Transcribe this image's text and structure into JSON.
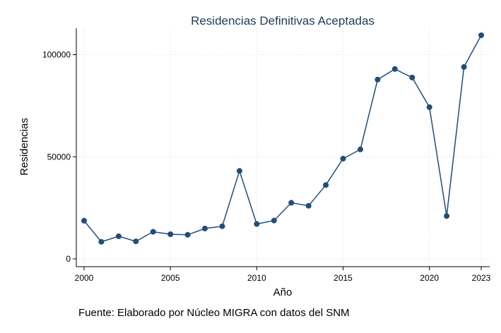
{
  "chart_data": {
    "type": "line",
    "title": "Residencias Definitivas Aceptadas",
    "xlabel": "Año",
    "ylabel": "Residencias",
    "note": "Fuente: Elaborado por Núcleo MIGRA con datos del SNM",
    "x": [
      2000,
      2001,
      2002,
      2003,
      2004,
      2005,
      2006,
      2007,
      2008,
      2009,
      2010,
      2011,
      2012,
      2013,
      2014,
      2015,
      2016,
      2017,
      2018,
      2019,
      2020,
      2021,
      2022,
      2023
    ],
    "series": [
      {
        "values": [
          18700,
          8400,
          11100,
          8600,
          13300,
          12100,
          11800,
          14900,
          16000,
          43100,
          17100,
          18800,
          27500,
          26000,
          36200,
          49100,
          53600,
          87800,
          93000,
          88800,
          74300,
          21000,
          94000,
          109500
        ]
      }
    ],
    "xticks": [
      2000,
      2005,
      2010,
      2015,
      2020,
      2023
    ],
    "xtick_labels": [
      "2000",
      "2005",
      "2010",
      "2015",
      "2020",
      "2023"
    ],
    "yticks": [
      0,
      50000,
      100000
    ],
    "ytick_labels": [
      "0",
      "50000",
      "100000"
    ],
    "xlim": [
      2000,
      2023
    ],
    "ylim": [
      0,
      109500
    ],
    "grid": true,
    "colors": {
      "line": "#1f4e79",
      "marker": "#1f4e79",
      "grid": "#d9d9d9",
      "title": "#1f3b5a"
    }
  }
}
